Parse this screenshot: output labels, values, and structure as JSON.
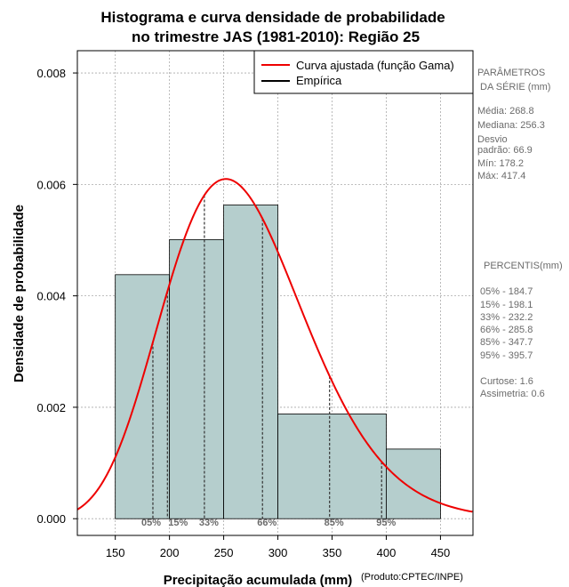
{
  "chart_data": {
    "type": "histogram",
    "title": [
      "Histograma e curva densidade de probabilidade",
      "no trimestre JAS (1981-2010): Região 25"
    ],
    "xlabel": "Precipitação acumulada (mm)",
    "ylabel": "Densidade de probabilidade",
    "credit": "(Produto:CPTEC/INPE)",
    "xlim": [
      115,
      480
    ],
    "ylim": [
      -0.0003,
      0.0084
    ],
    "xticks": [
      150,
      200,
      250,
      300,
      350,
      400,
      450
    ],
    "yticks": [
      0.0,
      0.002,
      0.004,
      0.006,
      0.008
    ],
    "ytick_labels": [
      "0.000",
      "0.002",
      "0.004",
      "0.006",
      "0.008"
    ],
    "grid": true,
    "bins": [
      {
        "from": 150,
        "to": 200,
        "density": 0.00438
      },
      {
        "from": 200,
        "to": 250,
        "density": 0.00501
      },
      {
        "from": 250,
        "to": 300,
        "density": 0.00563
      },
      {
        "from": 300,
        "to": 400,
        "density": 0.00188
      },
      {
        "from": 400,
        "to": 450,
        "density": 0.00125
      }
    ],
    "gamma_fit": {
      "shape": 16.0,
      "scale": 16.8
    },
    "percentile_markers": [
      {
        "label": "05%",
        "x": 184.7
      },
      {
        "label": "15%",
        "x": 198.1
      },
      {
        "label": "33%",
        "x": 232.2
      },
      {
        "label": "66%",
        "x": 285.8
      },
      {
        "label": "85%",
        "x": 347.7
      },
      {
        "label": "95%",
        "x": 395.7
      }
    ],
    "legend": [
      {
        "label": "Curva ajustada (função Gama)",
        "color": "#ee0000"
      },
      {
        "label": "Empírica",
        "color": "#000000"
      }
    ],
    "colors": {
      "bar_fill": "#b5cecd",
      "curve": "#ee0000",
      "grid": "#aaaaaa",
      "side_text": "#6b6b6b"
    }
  },
  "side_panel": {
    "parametros_title": [
      "PARÂMETROS",
      "DA SÉRIE (mm)"
    ],
    "parametros": [
      "Média:  268.8",
      "Mediana:  256.3",
      "Desvio",
      "padrão:  66.9",
      "Mín:  178.2",
      "Máx:  417.4"
    ],
    "percentis_title": "PERCENTIS(mm)",
    "percentis": [
      "05% -  184.7",
      "15% -  198.1",
      "33% -  232.2",
      "66% -  285.8",
      "85% -  347.7",
      "95% -  395.7"
    ],
    "extra": [
      "Curtose:  1.6",
      "Assimetria:  0.6"
    ]
  }
}
